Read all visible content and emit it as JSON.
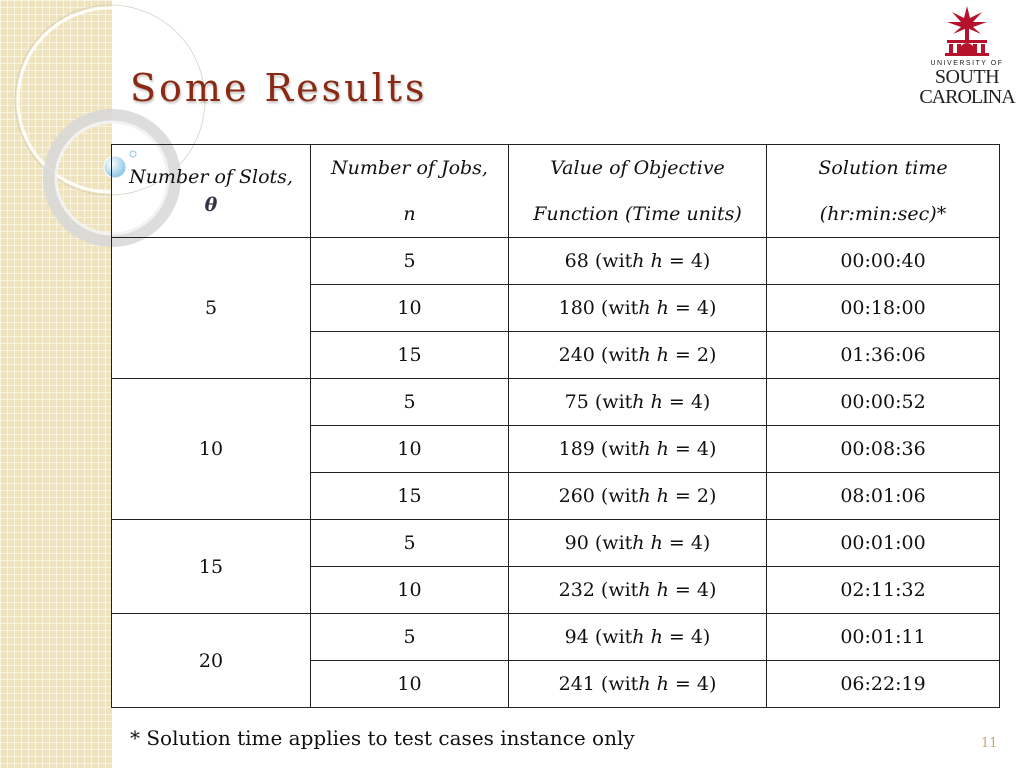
{
  "slide": {
    "title": "Some Results",
    "footnote": "* Solution time applies to test cases instance only",
    "slide_number": "11"
  },
  "logo": {
    "line1": "UNIVERSITY OF",
    "line2": "SOUTH",
    "line3": "CAROLINA"
  },
  "table": {
    "headers": {
      "slots": "Number of Slots,",
      "slots_symbol": "θ",
      "jobs_line1": "Number of Jobs,",
      "jobs_line2": "n",
      "objective_line1": "Value of Objective",
      "objective_line2": "Function (Time units)",
      "time_line1": "Solution time",
      "time_line2": "(hr:min:sec)*"
    },
    "groups": [
      {
        "slots": "5",
        "rows": [
          {
            "jobs": "5",
            "value": "68",
            "h": "4",
            "time": "00:00:40"
          },
          {
            "jobs": "10",
            "value": "180",
            "h": "4",
            "time": "00:18:00"
          },
          {
            "jobs": "15",
            "value": "240",
            "h": "2",
            "time": "01:36:06"
          }
        ]
      },
      {
        "slots": "10",
        "rows": [
          {
            "jobs": "5",
            "value": "75",
            "h": "4",
            "time": "00:00:52"
          },
          {
            "jobs": "10",
            "value": "189",
            "h": "4",
            "time": "00:08:36"
          },
          {
            "jobs": "15",
            "value": "260",
            "h": "2",
            "time": "08:01:06"
          }
        ]
      },
      {
        "slots": "15",
        "rows": [
          {
            "jobs": "5",
            "value": "90",
            "h": "4",
            "time": "00:01:00"
          },
          {
            "jobs": "10",
            "value": "232",
            "h": "4",
            "time": "02:11:32"
          }
        ]
      },
      {
        "slots": "20",
        "rows": [
          {
            "jobs": "5",
            "value": "94",
            "h": "4",
            "time": "00:01:11"
          },
          {
            "jobs": "10",
            "value": "241",
            "h": "4",
            "time": "06:22:19"
          }
        ]
      }
    ]
  },
  "colors": {
    "title": "#8a2a14",
    "logo_red": "#b5122d",
    "strip": "#efe3bd",
    "slide_number": "#c9a96b"
  }
}
